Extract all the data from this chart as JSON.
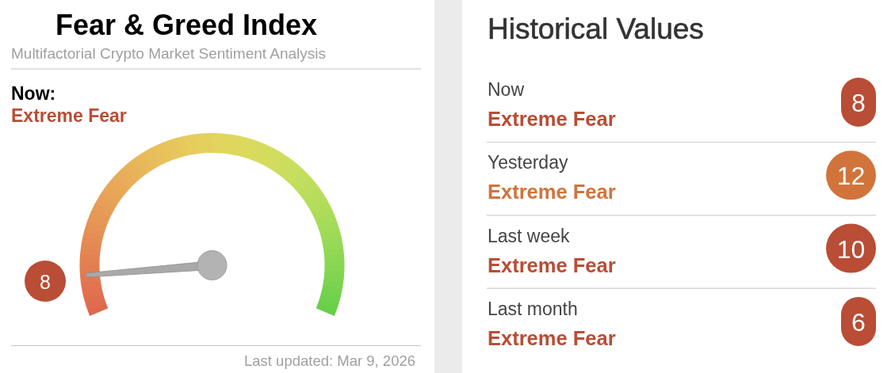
{
  "chart_data": [
    {
      "type": "other",
      "title": "Fear & Greed Index",
      "subtitle": "Multifactorial Crypto Market Sentiment Analysis",
      "values": [
        8
      ],
      "data_labels": true,
      "annotations": [
        "Now:",
        "Extreme Fear",
        "Last updated: Mar 9, 2026"
      ]
    },
    {
      "type": "other",
      "title": "Historical Values",
      "values": [
        8,
        12,
        10,
        6
      ],
      "colors": [
        "#b94d35",
        "#d1743b",
        "#b94d35",
        "#b94d35"
      ],
      "data_labels": true,
      "annotations": [
        "Now",
        "Extreme Fear",
        "Yesterday",
        "Extreme Fear",
        "Last week",
        "Extreme Fear",
        "Last month",
        "Extreme Fear"
      ]
    }
  ]
}
